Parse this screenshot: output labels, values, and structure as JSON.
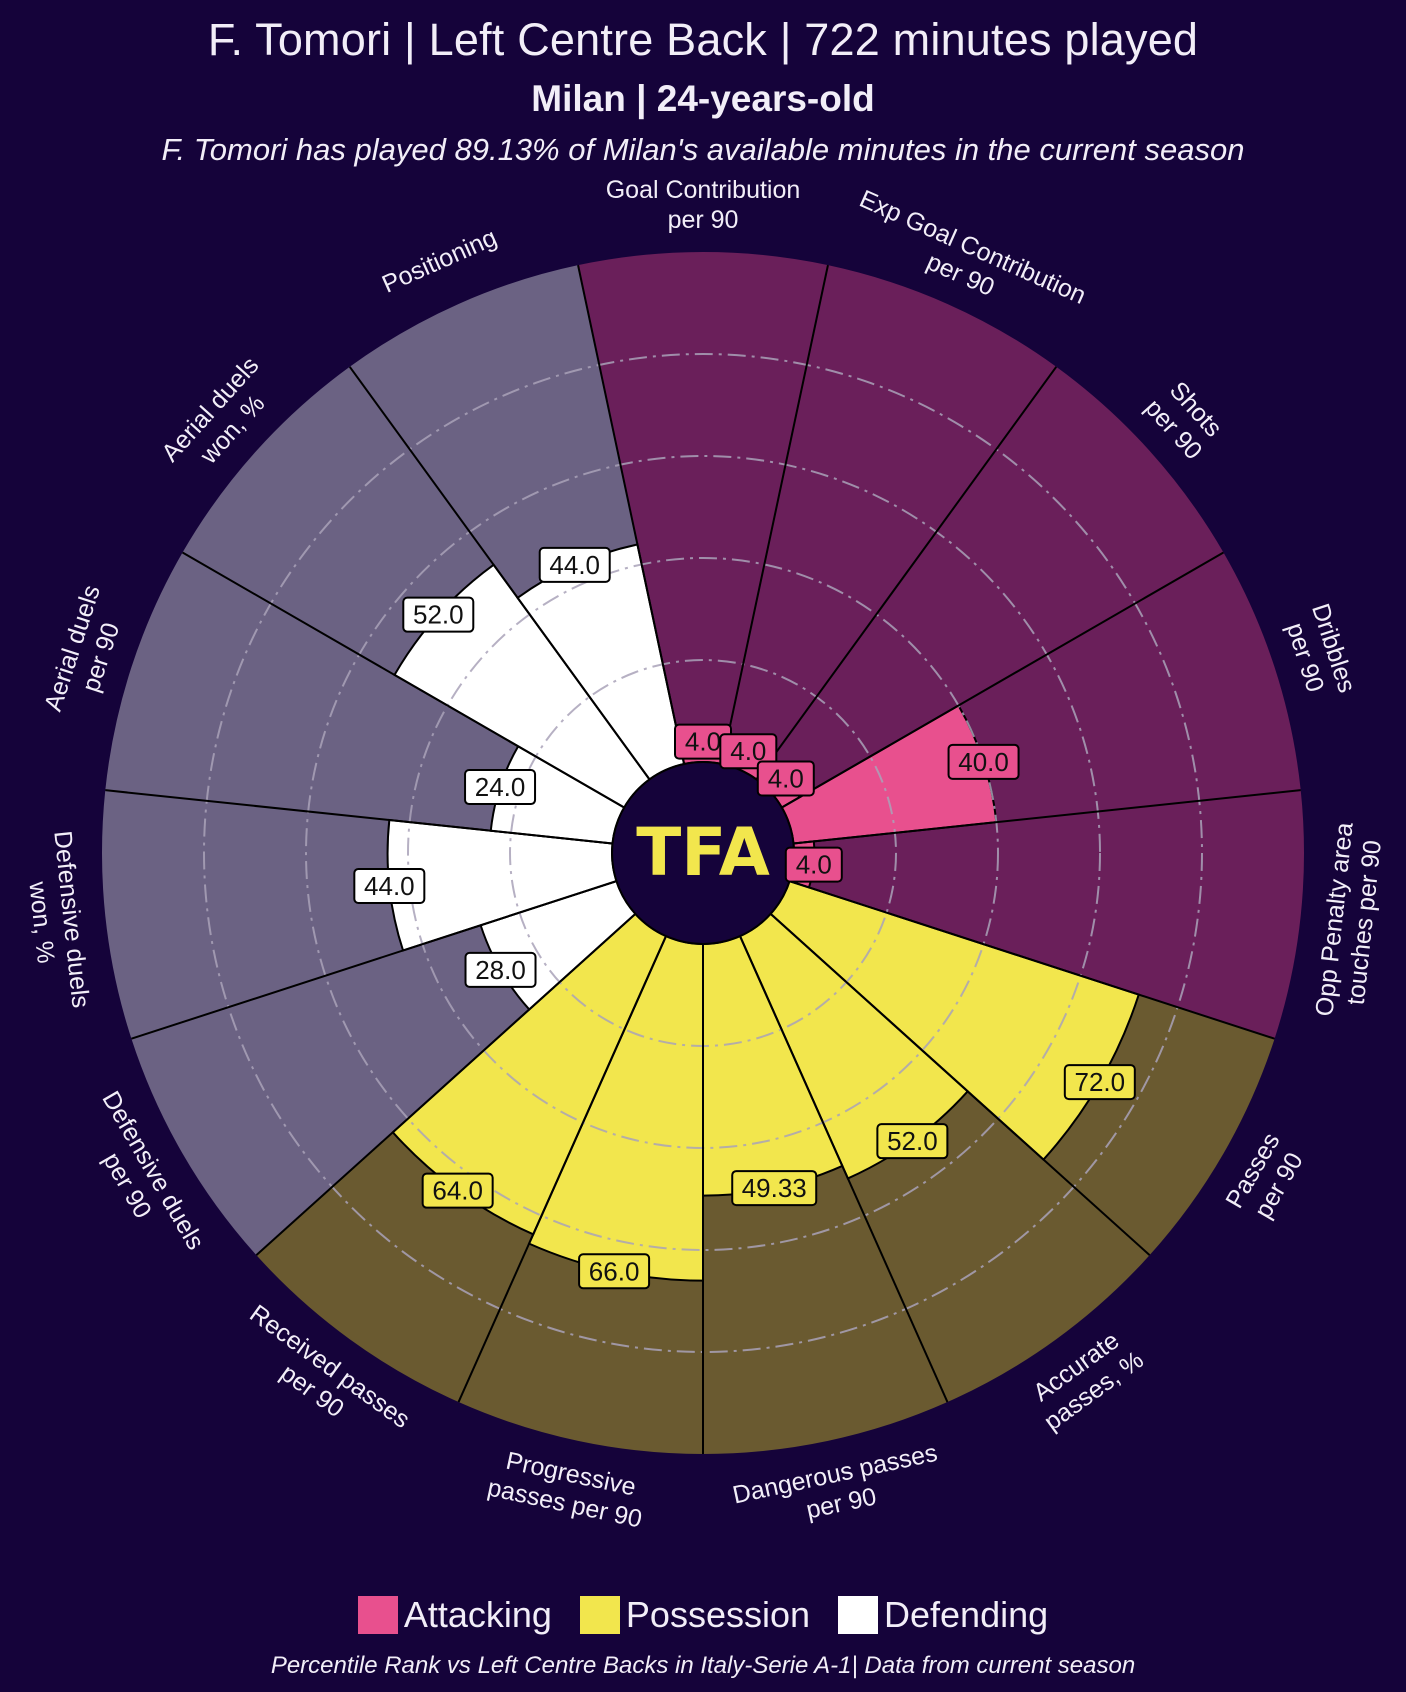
{
  "header": {
    "title": "F. Tomori | Left Centre Back | 722 minutes played",
    "subtitle": "Milan | 24-years-old",
    "note": "F. Tomori has played 89.13% of Milan's available minutes in the current season"
  },
  "logo": {
    "text": "TFA",
    "color": "#f2e64d",
    "background": "#15033a"
  },
  "legend": [
    {
      "label": "Attacking",
      "color": "#e8508e"
    },
    {
      "label": "Possession",
      "color": "#f2e64d"
    },
    {
      "label": "Defending",
      "color": "#ffffff"
    }
  ],
  "footer": "Percentile Rank vs Left Centre Backs in Italy-Serie A-1| Data from current season",
  "colors": {
    "background": "#15033a",
    "attacking_bg": "#6a1f5a",
    "possession_bg": "#6a5a30",
    "defending_bg": "#6b6283",
    "gridline": "#a9a2b8"
  },
  "chart_data": {
    "type": "radar-bar",
    "title": "F. Tomori | Left Centre Back | 722 minutes played",
    "value_range": [
      0,
      100
    ],
    "gridlines": [
      20,
      40,
      60,
      80
    ],
    "direction": "clockwise from top",
    "metrics": [
      {
        "label": "Goal Contribution\nper 90",
        "value": 4.0,
        "display": "4.0",
        "group": "Attacking"
      },
      {
        "label": "Exp Goal Contribution\nper 90",
        "value": 4.0,
        "display": "4.0",
        "group": "Attacking"
      },
      {
        "label": "Shots\nper 90",
        "value": 4.0,
        "display": "4.0",
        "group": "Attacking"
      },
      {
        "label": "Dribbles\nper 90",
        "value": 40.0,
        "display": "40.0",
        "group": "Attacking"
      },
      {
        "label": "Opp Penalty area\ntouches per 90",
        "value": 4.0,
        "display": "4.0",
        "group": "Attacking"
      },
      {
        "label": "Passes\nper 90",
        "value": 72.0,
        "display": "72.0",
        "group": "Possession"
      },
      {
        "label": "Accurate\npasses, %",
        "value": 52.0,
        "display": "52.0",
        "group": "Possession"
      },
      {
        "label": "Dangerous passes\nper 90",
        "value": 49.33,
        "display": "49.33",
        "group": "Possession"
      },
      {
        "label": "Progressive\npasses per 90",
        "value": 66.0,
        "display": "66.0",
        "group": "Possession"
      },
      {
        "label": "Received passes\nper 90",
        "value": 64.0,
        "display": "64.0",
        "group": "Possession"
      },
      {
        "label": "Defensive duels\nper 90",
        "value": 28.0,
        "display": "28.0",
        "group": "Defending"
      },
      {
        "label": "Defensive duels\nwon, %",
        "value": 44.0,
        "display": "44.0",
        "group": "Defending"
      },
      {
        "label": "Aerial duels\nper 90",
        "value": 24.0,
        "display": "24.0",
        "group": "Defending"
      },
      {
        "label": "Aerial duels\nwon, %",
        "value": 52.0,
        "display": "52.0",
        "group": "Defending"
      },
      {
        "label": "Positioning",
        "value": 44.0,
        "display": "44.0",
        "group": "Defending"
      }
    ],
    "legend": [
      "Attacking",
      "Possession",
      "Defending"
    ],
    "legend_position": "bottom"
  }
}
